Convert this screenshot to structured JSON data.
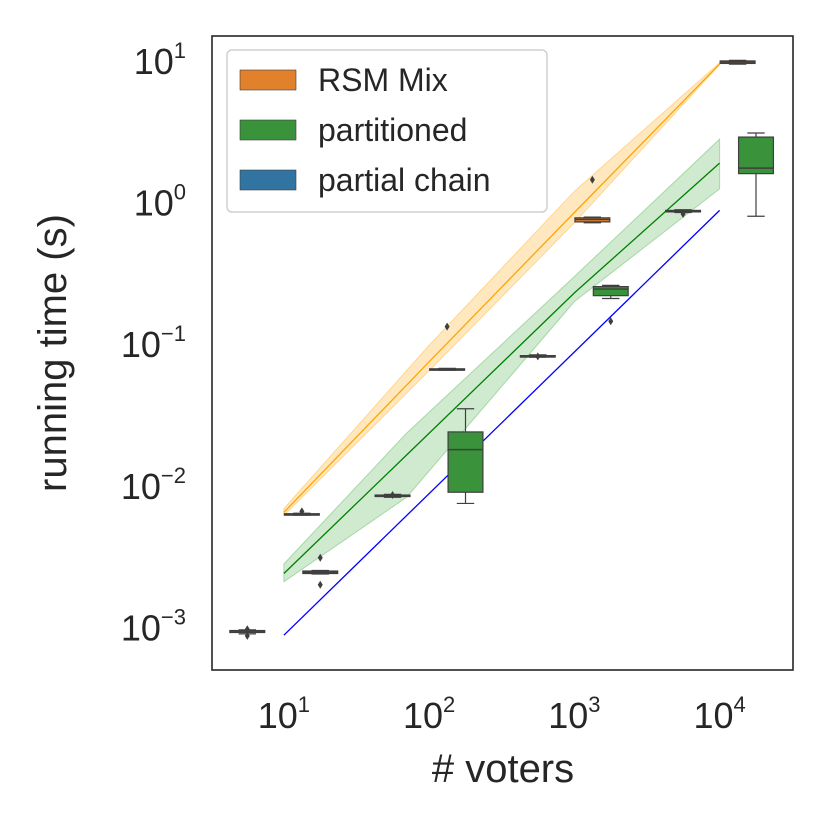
{
  "chart_data": {
    "type": "box",
    "xlabel": "# voters",
    "ylabel": "running time (s)",
    "xscale": "log",
    "yscale": "log",
    "xlim": [
      3.2,
      32000
    ],
    "ylim": [
      0.0005,
      15
    ],
    "xticks": [
      {
        "value": 10,
        "base": "10",
        "exp": "1"
      },
      {
        "value": 100,
        "base": "10",
        "exp": "2"
      },
      {
        "value": 1000,
        "base": "10",
        "exp": "3"
      },
      {
        "value": 10000,
        "base": "10",
        "exp": "4"
      }
    ],
    "yticks": [
      {
        "value": 0.001,
        "base": "10",
        "exp": "−3"
      },
      {
        "value": 0.01,
        "base": "10",
        "exp": "−2"
      },
      {
        "value": 0.1,
        "base": "10",
        "exp": "−1"
      },
      {
        "value": 1,
        "base": "10",
        "exp": "0"
      },
      {
        "value": 10,
        "base": "10",
        "exp": "1"
      }
    ],
    "legend": {
      "position": "upper-left",
      "entries": [
        {
          "label": "RSM Mix",
          "color": "#e1812c"
        },
        {
          "label": "partitioned",
          "color": "#3a923a"
        },
        {
          "label": "partial chain",
          "color": "#3274a1"
        }
      ]
    },
    "boxes": [
      {
        "group": "partial chain",
        "x": 5.6,
        "q1": 0.00092,
        "median": 0.00093,
        "q3": 0.00095,
        "whislo": 0.0009,
        "whishi": 0.00096,
        "outliers": [
          0.00087,
          0.00097
        ],
        "color": "#3274a1"
      },
      {
        "group": "RSM Mix",
        "x": 13.3,
        "q1": 0.00625,
        "median": 0.0063,
        "q3": 0.00635,
        "whislo": 0.0062,
        "whishi": 0.0064,
        "outliers": [
          0.0066
        ],
        "color": "#e1812c"
      },
      {
        "group": "partitioned",
        "x": 17.8,
        "q1": 0.0024,
        "median": 0.00245,
        "q3": 0.0025,
        "whislo": 0.00238,
        "whishi": 0.00252,
        "outliers": [
          0.0031,
          0.002
        ],
        "color": "#3a923a"
      },
      {
        "group": "partial chain",
        "x": 56,
        "q1": 0.0084,
        "median": 0.0085,
        "q3": 0.0086,
        "whislo": 0.0083,
        "whishi": 0.0087,
        "outliers": [
          0.0086
        ],
        "color": "#3274a1"
      },
      {
        "group": "RSM Mix",
        "x": 133,
        "q1": 0.066,
        "median": 0.0665,
        "q3": 0.067,
        "whislo": 0.0655,
        "whishi": 0.0675,
        "outliers": [
          0.133
        ],
        "color": "#e1812c"
      },
      {
        "group": "partitioned",
        "x": 178,
        "q1": 0.009,
        "median": 0.018,
        "q3": 0.024,
        "whislo": 0.0075,
        "whishi": 0.035,
        "outliers": [],
        "color": "#3a923a"
      },
      {
        "group": "partial chain",
        "x": 560,
        "q1": 0.082,
        "median": 0.0825,
        "q3": 0.083,
        "whislo": 0.081,
        "whishi": 0.084,
        "outliers": [
          0.082
        ],
        "color": "#3274a1"
      },
      {
        "group": "RSM Mix",
        "x": 1330,
        "q1": 0.73,
        "median": 0.76,
        "q3": 0.78,
        "whislo": 0.72,
        "whishi": 0.79,
        "outliers": [
          1.45
        ],
        "color": "#e1812c"
      },
      {
        "group": "partitioned",
        "x": 1780,
        "q1": 0.22,
        "median": 0.245,
        "q3": 0.255,
        "whislo": 0.21,
        "whishi": 0.26,
        "outliers": [
          0.145
        ],
        "color": "#3a923a"
      },
      {
        "group": "partial chain",
        "x": 5600,
        "q1": 0.86,
        "median": 0.87,
        "q3": 0.88,
        "whislo": 0.85,
        "whishi": 0.89,
        "outliers": [
          0.83
        ],
        "color": "#3274a1"
      },
      {
        "group": "RSM Mix",
        "x": 13300,
        "q1": 9.6,
        "median": 9.8,
        "q3": 10.0,
        "whislo": 9.5,
        "whishi": 10.1,
        "outliers": [],
        "color": "#e1812c"
      },
      {
        "group": "partitioned",
        "x": 17800,
        "q1": 1.6,
        "median": 1.75,
        "q3": 2.9,
        "whislo": 0.8,
        "whishi": 3.1,
        "outliers": [],
        "color": "#3a923a"
      }
    ],
    "trend_lines": [
      {
        "name": "RSM Mix fit",
        "color": "#ffa500",
        "band_color": "#ffd68c",
        "points": [
          {
            "x": 10,
            "y": 0.0065,
            "lo": 0.0062,
            "hi": 0.0069
          },
          {
            "x": 100,
            "y": 0.075,
            "lo": 0.065,
            "hi": 0.098
          },
          {
            "x": 1000,
            "y": 0.85,
            "lo": 0.72,
            "hi": 1.2
          },
          {
            "x": 10000,
            "y": 9.5,
            "lo": 9.4,
            "hi": 9.7
          }
        ]
      },
      {
        "name": "partitioned fit",
        "color": "#008000",
        "band_color": "#a7d8a7",
        "points": [
          {
            "x": 10,
            "y": 0.0024,
            "lo": 0.0021,
            "hi": 0.0028
          },
          {
            "x": 70,
            "y": 0.0165,
            "lo": 0.0083,
            "hi": 0.0235
          },
          {
            "x": 1000,
            "y": 0.23,
            "lo": 0.2,
            "hi": 0.3
          },
          {
            "x": 10000,
            "y": 1.9,
            "lo": 1.25,
            "hi": 2.8
          }
        ]
      },
      {
        "name": "partial chain fit",
        "color": "#0000ff",
        "points": [
          {
            "x": 10,
            "y": 0.00088
          },
          {
            "x": 10000,
            "y": 0.88
          }
        ]
      }
    ]
  }
}
